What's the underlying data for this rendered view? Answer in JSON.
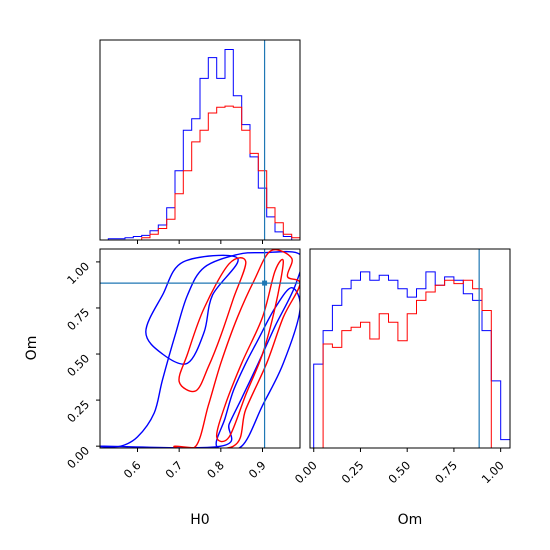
{
  "chart_data": {
    "type": "corner",
    "parameters": [
      "H0",
      "Om"
    ],
    "truth": {
      "H0": 0.905,
      "Om": 0.885
    },
    "colors": {
      "blue": "#0000ff",
      "red": "#ff0000",
      "truth": "#1f77b4"
    },
    "panels": [
      {
        "id": "h0-hist",
        "type": "histogram",
        "xlim": [
          0.51,
          0.99
        ],
        "xticks": [
          0.6,
          0.7,
          0.8,
          0.9
        ],
        "show_tick_labels": false,
        "series": [
          {
            "color": "blue",
            "edges": [
              0.53,
              0.55,
              0.57,
              0.59,
              0.61,
              0.63,
              0.65,
              0.67,
              0.69,
              0.71,
              0.73,
              0.75,
              0.77,
              0.79,
              0.81,
              0.83,
              0.85,
              0.87,
              0.89,
              0.91,
              0.93,
              0.95,
              0.97
            ],
            "counts": [
              1,
              1,
              2,
              3,
              4,
              8,
              13,
              28,
              60,
              95,
              105,
              140,
              158,
              140,
              165,
              125,
              100,
              72,
              45,
              20,
              7,
              3
            ]
          },
          {
            "color": "red",
            "edges": [
              0.61,
              0.63,
              0.65,
              0.67,
              0.69,
              0.71,
              0.73,
              0.75,
              0.77,
              0.79,
              0.81,
              0.83,
              0.85,
              0.87,
              0.89,
              0.91,
              0.93,
              0.95,
              0.97,
              0.99
            ],
            "counts": [
              2,
              5,
              10,
              18,
              40,
              60,
              85,
              95,
              110,
              115,
              116,
              115,
              95,
              75,
              60,
              28,
              15,
              5,
              2
            ]
          }
        ]
      },
      {
        "id": "h0-om-2d",
        "type": "contour",
        "xlabel": "H0",
        "ylabel": "Om",
        "xlim": [
          0.51,
          0.99
        ],
        "ylim": [
          -0.01,
          1.07
        ],
        "xticks": [
          0.6,
          0.7,
          0.8,
          0.9
        ],
        "xtick_labels": [
          "0.6",
          "0.7",
          "0.8",
          "0.9"
        ],
        "yticks": [
          0.0,
          0.25,
          0.5,
          0.75,
          1.0
        ],
        "ytick_labels": [
          "0.00",
          "0.25",
          "0.50",
          "0.75",
          "1.00"
        ],
        "contours": [
          {
            "color": "blue",
            "level": "outer",
            "points": [
              [
                0.52,
                0.0
              ],
              [
                0.56,
                0.0
              ],
              [
                0.6,
                0.05
              ],
              [
                0.64,
                0.18
              ],
              [
                0.66,
                0.36
              ],
              [
                0.69,
                0.6
              ],
              [
                0.72,
                0.82
              ],
              [
                0.76,
                0.97
              ],
              [
                0.84,
                1.04
              ],
              [
                0.9,
                1.05
              ],
              [
                0.99,
                1.04
              ],
              [
                0.98,
                0.88
              ],
              [
                0.93,
                0.65
              ],
              [
                0.89,
                0.45
              ],
              [
                0.85,
                0.26
              ],
              [
                0.82,
                0.12
              ],
              [
                0.8,
                0.0
              ]
            ]
          },
          {
            "color": "blue",
            "level": "inner",
            "points": [
              [
                0.62,
                0.62
              ],
              [
                0.66,
                0.82
              ],
              [
                0.71,
                1.0
              ],
              [
                0.84,
                1.02
              ],
              [
                0.78,
                0.82
              ],
              [
                0.76,
                0.62
              ],
              [
                0.72,
                0.45
              ],
              [
                0.66,
                0.5
              ]
            ]
          },
          {
            "color": "blue",
            "level": "inner",
            "points": [
              [
                0.79,
                0.0
              ],
              [
                0.85,
                0.0
              ],
              [
                0.9,
                0.22
              ],
              [
                0.95,
                0.45
              ],
              [
                0.99,
                0.74
              ],
              [
                0.97,
                0.86
              ],
              [
                0.93,
                0.75
              ],
              [
                0.89,
                0.58
              ],
              [
                0.86,
                0.45
              ],
              [
                0.83,
                0.3
              ],
              [
                0.81,
                0.15
              ]
            ]
          },
          {
            "color": "red",
            "level": "outer",
            "points": [
              [
                0.69,
                0.0
              ],
              [
                0.74,
                0.0
              ],
              [
                0.77,
                0.22
              ],
              [
                0.8,
                0.45
              ],
              [
                0.84,
                0.7
              ],
              [
                0.88,
                0.9
              ],
              [
                0.92,
                1.06
              ],
              [
                0.97,
                1.02
              ],
              [
                0.96,
                0.92
              ],
              [
                0.99,
                0.88
              ],
              [
                0.95,
                0.7
              ],
              [
                0.91,
                0.45
              ],
              [
                0.86,
                0.2
              ],
              [
                0.83,
                0.0
              ]
            ]
          },
          {
            "color": "red",
            "level": "inner",
            "points": [
              [
                0.7,
                0.35
              ],
              [
                0.72,
                0.5
              ],
              [
                0.76,
                0.75
              ],
              [
                0.82,
                0.99
              ],
              [
                0.86,
                1.0
              ],
              [
                0.83,
                0.8
              ],
              [
                0.8,
                0.6
              ],
              [
                0.77,
                0.43
              ],
              [
                0.74,
                0.3
              ]
            ]
          },
          {
            "color": "red",
            "level": "inner",
            "points": [
              [
                0.79,
                0.05
              ],
              [
                0.81,
                0.22
              ],
              [
                0.85,
                0.45
              ],
              [
                0.9,
                0.7
              ],
              [
                0.93,
                0.95
              ],
              [
                0.95,
                1.0
              ],
              [
                0.93,
                0.75
              ],
              [
                0.9,
                0.5
              ],
              [
                0.86,
                0.28
              ],
              [
                0.82,
                0.05
              ]
            ]
          }
        ]
      },
      {
        "id": "om-hist",
        "type": "histogram",
        "xlabel": "Om",
        "xlim": [
          -0.02,
          1.05
        ],
        "xticks": [
          0.0,
          0.25,
          0.5,
          0.75,
          1.0
        ],
        "xtick_labels": [
          "0.00",
          "0.25",
          "0.50",
          "0.75",
          "1.00"
        ],
        "series": [
          {
            "color": "blue",
            "edges": [
              0.0,
              0.05,
              0.1,
              0.15,
              0.2,
              0.25,
              0.3,
              0.35,
              0.4,
              0.45,
              0.5,
              0.55,
              0.6,
              0.65,
              0.7,
              0.75,
              0.8,
              0.85,
              0.9,
              0.95,
              1.0,
              1.05
            ],
            "counts": [
              50,
              70,
              85,
              95,
              100,
              105,
              100,
              103,
              100,
              95,
              90,
              95,
              105,
              97,
              102,
              100,
              92,
              88,
              70,
              40,
              5
            ]
          },
          {
            "color": "red",
            "edges": [
              0.0,
              0.05,
              0.1,
              0.15,
              0.2,
              0.25,
              0.3,
              0.35,
              0.4,
              0.45,
              0.5,
              0.55,
              0.6,
              0.65,
              0.7,
              0.75,
              0.8,
              0.85,
              0.9,
              0.95,
              1.0
            ],
            "counts": [
              0,
              62,
              60,
              70,
              72,
              75,
              65,
              80,
              75,
              64,
              80,
              88,
              93,
              97,
              100,
              98,
              100,
              95,
              82,
              0
            ]
          }
        ]
      }
    ]
  }
}
